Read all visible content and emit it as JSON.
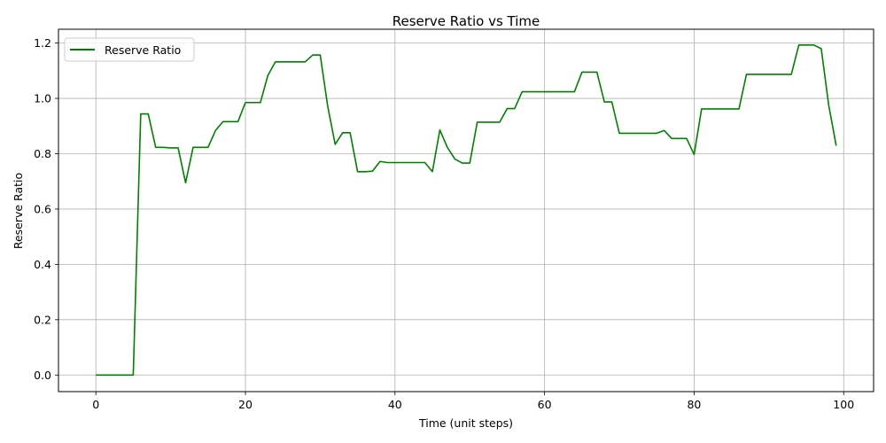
{
  "chart_data": {
    "type": "line",
    "title": "Reserve Ratio vs Time",
    "xlabel": "Time (unit steps)",
    "ylabel": "Reserve Ratio",
    "xlim": [
      -5,
      104
    ],
    "ylim": [
      -0.06,
      1.25
    ],
    "xticks": [
      0,
      20,
      40,
      60,
      80,
      100
    ],
    "yticks": [
      0.0,
      0.2,
      0.4,
      0.6,
      0.8,
      1.0,
      1.2
    ],
    "grid": true,
    "legend_position": "top-left",
    "series": [
      {
        "name": "Reserve Ratio",
        "color": "#008000",
        "x": [
          0,
          1,
          2,
          3,
          4,
          5,
          6,
          7,
          8,
          9,
          10,
          11,
          12,
          13,
          14,
          15,
          16,
          17,
          18,
          19,
          20,
          21,
          22,
          23,
          24,
          25,
          26,
          27,
          28,
          29,
          30,
          31,
          32,
          33,
          34,
          35,
          36,
          37,
          38,
          39,
          40,
          41,
          42,
          43,
          44,
          45,
          46,
          47,
          48,
          49,
          50,
          51,
          52,
          53,
          54,
          55,
          56,
          57,
          58,
          59,
          60,
          61,
          62,
          63,
          64,
          65,
          66,
          67,
          68,
          69,
          70,
          71,
          72,
          73,
          74,
          75,
          76,
          77,
          78,
          79,
          80,
          81,
          82,
          83,
          84,
          85,
          86,
          87,
          88,
          89,
          90,
          91,
          92,
          93,
          94,
          95,
          96,
          97,
          98,
          99
        ],
        "y": [
          0,
          0,
          0,
          0,
          0,
          0,
          0.944,
          0.944,
          0.823,
          0.823,
          0.821,
          0.821,
          0.695,
          0.823,
          0.823,
          0.823,
          0.884,
          0.916,
          0.916,
          0.916,
          0.985,
          0.985,
          0.985,
          1.083,
          1.132,
          1.132,
          1.132,
          1.132,
          1.132,
          1.157,
          1.157,
          0.972,
          0.834,
          0.876,
          0.876,
          0.735,
          0.735,
          0.737,
          0.772,
          0.768,
          0.768,
          0.768,
          0.768,
          0.768,
          0.768,
          0.735,
          0.886,
          0.823,
          0.781,
          0.766,
          0.766,
          0.914,
          0.914,
          0.914,
          0.914,
          0.963,
          0.963,
          1.024,
          1.024,
          1.024,
          1.024,
          1.024,
          1.024,
          1.024,
          1.024,
          1.095,
          1.095,
          1.095,
          0.987,
          0.987,
          0.874,
          0.874,
          0.874,
          0.874,
          0.874,
          0.874,
          0.884,
          0.855,
          0.855,
          0.855,
          0.797,
          0.962,
          0.962,
          0.962,
          0.962,
          0.962,
          0.962,
          1.087,
          1.087,
          1.087,
          1.087,
          1.087,
          1.087,
          1.087,
          1.193,
          1.193,
          1.193,
          1.18,
          0.975,
          0.829
        ]
      }
    ]
  }
}
